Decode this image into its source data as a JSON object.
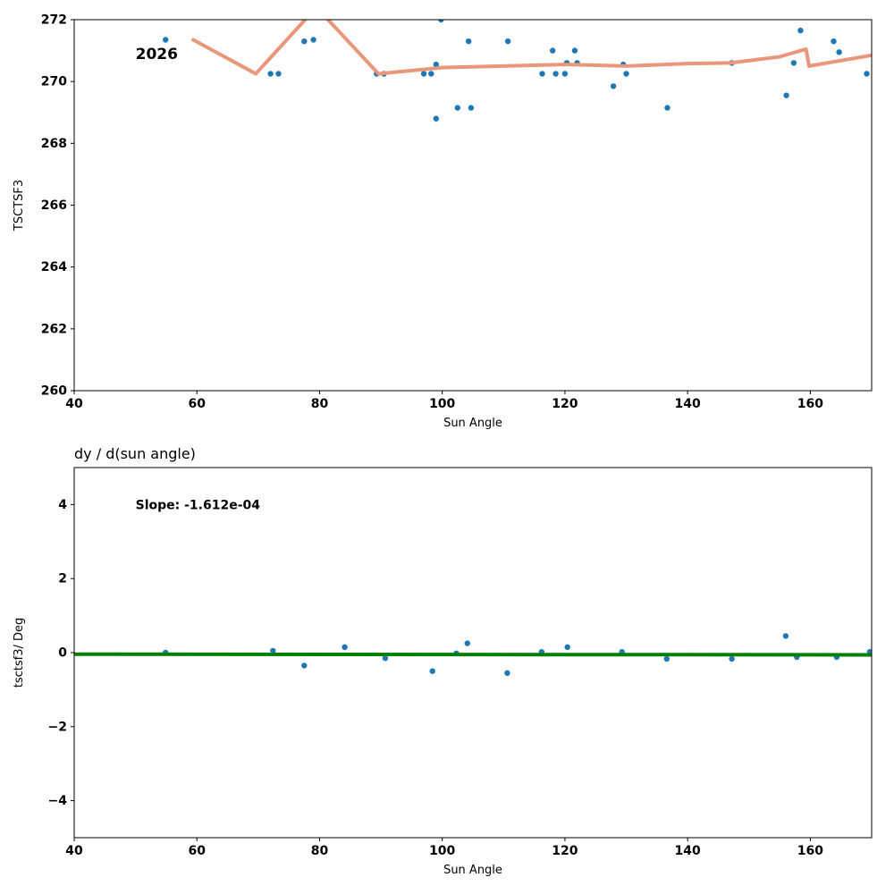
{
  "figure": {
    "background": "#ffffff"
  },
  "chart_data": [
    {
      "type": "scatter",
      "title": "",
      "xlabel": "Sun Angle",
      "ylabel": "TSCTSF3",
      "xlim": [
        40,
        170
      ],
      "ylim": [
        260,
        272
      ],
      "xticks": [
        40,
        60,
        80,
        100,
        120,
        140,
        160
      ],
      "yticks": [
        260,
        262,
        264,
        266,
        268,
        270,
        272
      ],
      "grid": false,
      "legend": "none",
      "annotation": {
        "text": "2026",
        "x": 50,
        "y": 270.9
      },
      "series": [
        {
          "name": "tsctsf3-scatter",
          "type": "scatter",
          "color": "#1f77b4",
          "marker_size": 3.2,
          "points": [
            [
              54.9,
              271.35
            ],
            [
              72.0,
              270.25
            ],
            [
              73.3,
              270.25
            ],
            [
              77.5,
              271.3
            ],
            [
              79.0,
              271.35
            ],
            [
              89.3,
              270.25
            ],
            [
              90.5,
              270.25
            ],
            [
              97.0,
              270.25
            ],
            [
              98.2,
              270.25
            ],
            [
              99.0,
              270.55
            ],
            [
              99.0,
              268.8
            ],
            [
              99.8,
              272.0
            ],
            [
              102.5,
              269.15
            ],
            [
              104.3,
              271.3
            ],
            [
              104.7,
              269.15
            ],
            [
              110.7,
              271.3
            ],
            [
              116.3,
              270.25
            ],
            [
              118.0,
              271.0
            ],
            [
              118.5,
              270.25
            ],
            [
              120.0,
              270.25
            ],
            [
              120.3,
              270.6
            ],
            [
              121.6,
              271.0
            ],
            [
              122.0,
              270.6
            ],
            [
              127.9,
              269.85
            ],
            [
              129.5,
              270.55
            ],
            [
              130.0,
              270.25
            ],
            [
              136.7,
              269.15
            ],
            [
              147.2,
              270.6
            ],
            [
              156.1,
              269.55
            ],
            [
              157.3,
              270.6
            ],
            [
              158.4,
              271.65
            ],
            [
              163.8,
              271.3
            ],
            [
              164.7,
              270.95
            ],
            [
              169.2,
              270.25
            ]
          ]
        },
        {
          "name": "fit-line",
          "type": "line",
          "color": "#e9967a",
          "width": 4,
          "points": [
            [
              59.4,
              271.35
            ],
            [
              69.6,
              270.25
            ],
            [
              79.5,
              272.4
            ],
            [
              89.6,
              270.25
            ],
            [
              100.0,
              270.45
            ],
            [
              120.0,
              270.55
            ],
            [
              130.0,
              270.5
            ],
            [
              140.0,
              270.58
            ],
            [
              147.0,
              270.6
            ],
            [
              155.0,
              270.8
            ],
            [
              159.3,
              271.05
            ],
            [
              159.8,
              270.5
            ],
            [
              170.0,
              270.85
            ]
          ]
        }
      ]
    },
    {
      "type": "scatter",
      "title": "dy / d(sun angle)",
      "xlabel": "Sun Angle",
      "ylabel": "tsctsf3/ Deg",
      "xlim": [
        40,
        170
      ],
      "ylim": [
        -5,
        5
      ],
      "xticks": [
        40,
        60,
        80,
        100,
        120,
        140,
        160
      ],
      "yticks": [
        -4,
        -2,
        0,
        2,
        4
      ],
      "grid": false,
      "legend": "none",
      "annotation": {
        "text": "Slope: -1.612e-04",
        "x": 50,
        "y": 4.0
      },
      "series": [
        {
          "name": "derivative-scatter",
          "type": "scatter",
          "color": "#1f77b4",
          "marker_size": 3.2,
          "points": [
            [
              54.9,
              0.0
            ],
            [
              72.4,
              0.05
            ],
            [
              77.5,
              -0.35
            ],
            [
              84.1,
              0.15
            ],
            [
              90.7,
              -0.15
            ],
            [
              98.4,
              -0.5
            ],
            [
              102.3,
              -0.02
            ],
            [
              104.1,
              0.25
            ],
            [
              110.6,
              -0.55
            ],
            [
              116.2,
              0.02
            ],
            [
              120.4,
              0.15
            ],
            [
              129.3,
              0.02
            ],
            [
              136.6,
              -0.17
            ],
            [
              147.2,
              -0.17
            ],
            [
              156.0,
              0.45
            ],
            [
              157.8,
              -0.12
            ],
            [
              164.3,
              -0.12
            ],
            [
              169.7,
              0.02
            ]
          ]
        },
        {
          "name": "slope-line",
          "type": "line",
          "color": "#008000",
          "width": 4,
          "points": [
            [
              40.0,
              -0.04
            ],
            [
              170.0,
              -0.06
            ]
          ]
        }
      ]
    }
  ]
}
